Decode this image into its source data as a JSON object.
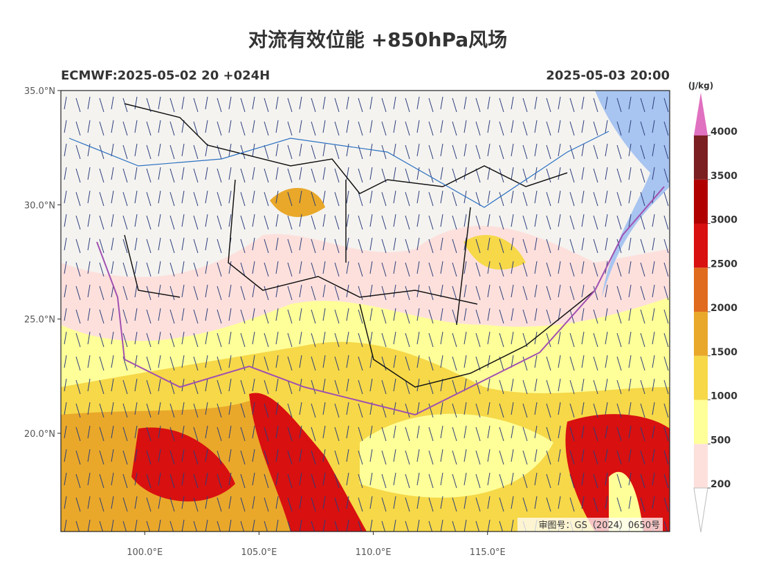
{
  "header": {
    "title": "对流有效位能 +850hPa风场",
    "run": "ECMWF:2025-05-02 20 +024H",
    "valid": "2025-05-03 20:00"
  },
  "map": {
    "lon_range": [
      96.33,
      122.97
    ],
    "lat_range": [
      15.7,
      35
    ],
    "lat_ticks": [
      {
        "value": 35,
        "label": "35.0°N"
      },
      {
        "value": 30,
        "label": "30.0°N"
      },
      {
        "value": 25,
        "label": "25.0°N"
      },
      {
        "value": 20,
        "label": "20.0°N"
      }
    ],
    "lon_ticks": [
      {
        "value": 100,
        "label": "100.0°E"
      },
      {
        "value": 105,
        "label": "105.0°E"
      },
      {
        "value": 110,
        "label": "110.0°E"
      },
      {
        "value": 115,
        "label": "115.0°E"
      }
    ],
    "approval": "审图号：GS（2024）0650号"
  },
  "colorbar": {
    "unit": "(J/kg)",
    "levels": [
      200,
      500,
      1000,
      1500,
      2000,
      2500,
      3000,
      3500,
      4000
    ],
    "colors": [
      "#fde0dc",
      "#ffff99",
      "#f6d848",
      "#e9a82a",
      "#e06b1e",
      "#d81010",
      "#b00000",
      "#7b1f22"
    ],
    "extend_color": "#e070c0"
  }
}
